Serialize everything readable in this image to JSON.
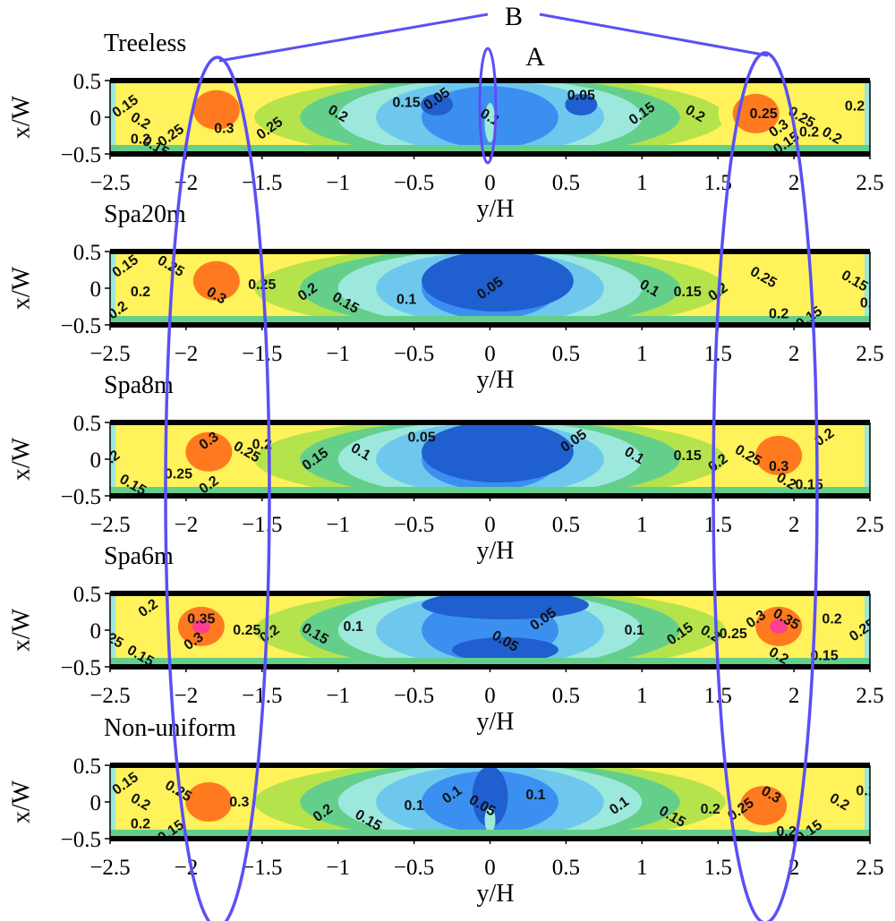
{
  "chart_data": {
    "type": "heatmap",
    "xlabel": "y/H",
    "ylabel": "x/W",
    "xlim": [
      -2.5,
      2.5
    ],
    "ylim": [
      -0.5,
      0.5
    ],
    "x_ticks": [
      "−2.5",
      "−2",
      "−1.5",
      "−1",
      "−0.5",
      "0",
      "0.5",
      "1",
      "1.5",
      "2",
      "2.5"
    ],
    "y_ticks": [
      "0.5",
      "0",
      "−0.5"
    ],
    "color_levels": [
      0.05,
      0.1,
      0.15,
      0.2,
      0.25,
      0.3,
      0.35
    ],
    "level_colors": [
      "#1f5fd0",
      "#3b8ff0",
      "#6ec8ee",
      "#9de8dc",
      "#63cf8a",
      "#b4e34c",
      "#fff25a",
      "#ff7a1e",
      "#ff3f8f"
    ],
    "annotations": [
      {
        "label": "A",
        "x": 0,
        "y": 0
      },
      {
        "label": "B",
        "targets": [
          -1.8,
          1.8
        ]
      }
    ],
    "panels": [
      {
        "title": "Treeless",
        "peak_value": 0.3,
        "hotspots": [
          {
            "y": -1.8,
            "x": 0.1,
            "value": 0.3
          },
          {
            "y": 1.75,
            "x": 0.05,
            "value": 0.3
          }
        ],
        "contour_labels": [
          {
            "text": "0.15",
            "y": -2.4,
            "x": 0.15
          },
          {
            "text": "0.2",
            "y": -2.3,
            "x": -0.05
          },
          {
            "text": "0.2",
            "y": -2.3,
            "x": -0.3
          },
          {
            "text": "0.25",
            "y": -2.1,
            "x": -0.25
          },
          {
            "text": "0.15",
            "y": -2.2,
            "x": -0.4
          },
          {
            "text": "0.3",
            "y": -1.75,
            "x": -0.15
          },
          {
            "text": "0.25",
            "y": -1.45,
            "x": -0.15
          },
          {
            "text": "0.2",
            "y": -1.0,
            "x": 0.05
          },
          {
            "text": "0.15",
            "y": -0.55,
            "x": 0.2
          },
          {
            "text": "0.05",
            "y": -0.35,
            "x": 0.25
          },
          {
            "text": "0.1",
            "y": 0.0,
            "x": 0.0
          },
          {
            "text": "0.05",
            "y": 0.6,
            "x": 0.3
          },
          {
            "text": "0.15",
            "y": 1.0,
            "x": 0.05
          },
          {
            "text": "0.2",
            "y": 1.35,
            "x": 0.05
          },
          {
            "text": "0.25",
            "y": 1.8,
            "x": 0.05
          },
          {
            "text": "0.3",
            "y": 1.9,
            "x": -0.15
          },
          {
            "text": "0.25",
            "y": 2.05,
            "x": 0.0
          },
          {
            "text": "0.2",
            "y": 2.1,
            "x": -0.2
          },
          {
            "text": "0.15",
            "y": 1.95,
            "x": -0.35
          },
          {
            "text": "0.2",
            "y": 2.25,
            "x": -0.25
          },
          {
            "text": "0.2",
            "y": 2.4,
            "x": 0.15
          }
        ]
      },
      {
        "title": "Spa20m",
        "peak_value": 0.3,
        "hotspots": [
          {
            "y": -1.8,
            "x": 0.1,
            "value": 0.3
          }
        ],
        "contour_labels": [
          {
            "text": "0.15",
            "y": -2.4,
            "x": 0.3
          },
          {
            "text": "0.25",
            "y": -2.1,
            "x": 0.3
          },
          {
            "text": "0.2",
            "y": -2.3,
            "x": -0.05
          },
          {
            "text": "0.2",
            "y": -2.45,
            "x": -0.3
          },
          {
            "text": "0.3",
            "y": -1.8,
            "x": -0.1
          },
          {
            "text": "0.25",
            "y": -1.5,
            "x": 0.05
          },
          {
            "text": "0.2",
            "y": -1.2,
            "x": -0.05
          },
          {
            "text": "0.15",
            "y": -0.95,
            "x": -0.2
          },
          {
            "text": "0.1",
            "y": -0.55,
            "x": -0.15
          },
          {
            "text": "0.05",
            "y": 0.0,
            "x": 0.0
          },
          {
            "text": "0.1",
            "y": 1.05,
            "x": 0.0
          },
          {
            "text": "0.15",
            "y": 1.3,
            "x": -0.05
          },
          {
            "text": "0.2",
            "y": 1.5,
            "x": -0.05
          },
          {
            "text": "0.25",
            "y": 1.8,
            "x": 0.15
          },
          {
            "text": "0.2",
            "y": 1.9,
            "x": -0.35
          },
          {
            "text": "0.15",
            "y": 2.1,
            "x": -0.4
          },
          {
            "text": "0.15",
            "y": 2.4,
            "x": 0.1
          },
          {
            "text": "0.2",
            "y": 2.5,
            "x": -0.2
          }
        ]
      },
      {
        "title": "Spa8m",
        "peak_value": 0.3,
        "hotspots": [
          {
            "y": -1.85,
            "x": 0.1,
            "value": 0.3
          },
          {
            "y": 1.9,
            "x": 0.05,
            "value": 0.3
          }
        ],
        "contour_labels": [
          {
            "text": "0.3",
            "y": -1.85,
            "x": 0.25
          },
          {
            "text": "0.25",
            "y": -1.6,
            "x": 0.1
          },
          {
            "text": "0.2",
            "y": -1.5,
            "x": 0.2
          },
          {
            "text": "0.15",
            "y": -1.15,
            "x": 0.0
          },
          {
            "text": "0.1",
            "y": -0.85,
            "x": 0.1
          },
          {
            "text": "0.05",
            "y": -0.45,
            "x": 0.3
          },
          {
            "text": "0.05",
            "y": 0.55,
            "x": 0.25
          },
          {
            "text": "0.1",
            "y": 0.95,
            "x": 0.05
          },
          {
            "text": "0.15",
            "y": 1.3,
            "x": 0.05
          },
          {
            "text": "0.2",
            "y": 1.5,
            "x": -0.05
          },
          {
            "text": "0.25",
            "y": 1.7,
            "x": 0.05
          },
          {
            "text": "0.3",
            "y": 1.9,
            "x": -0.1
          },
          {
            "text": "0.2",
            "y": 2.2,
            "x": 0.3
          },
          {
            "text": "0.2",
            "y": 1.95,
            "x": -0.3
          },
          {
            "text": "0.15",
            "y": 2.1,
            "x": -0.35
          },
          {
            "text": "0.2",
            "y": -2.5,
            "x": 0.0
          },
          {
            "text": "0.15",
            "y": -2.35,
            "x": -0.35
          },
          {
            "text": "0.25",
            "y": -2.05,
            "x": -0.2
          },
          {
            "text": "0.2",
            "y": -1.85,
            "x": -0.35
          }
        ]
      },
      {
        "title": "Spa6m",
        "peak_value": 0.35,
        "hotspots": [
          {
            "y": -1.9,
            "x": 0.05,
            "value": 0.35
          },
          {
            "y": 1.9,
            "x": 0.05,
            "value": 0.35
          }
        ],
        "contour_labels": [
          {
            "text": "0.2",
            "y": -2.25,
            "x": 0.3
          },
          {
            "text": "0.25",
            "y": -2.5,
            "x": -0.1
          },
          {
            "text": "0.35",
            "y": -1.9,
            "x": 0.15
          },
          {
            "text": "0.3",
            "y": -1.95,
            "x": -0.15
          },
          {
            "text": "0.15",
            "y": -2.3,
            "x": -0.35
          },
          {
            "text": "0.25",
            "y": -1.6,
            "x": 0.0
          },
          {
            "text": "0.2",
            "y": -1.45,
            "x": -0.05
          },
          {
            "text": "0.15",
            "y": -1.15,
            "x": -0.05
          },
          {
            "text": "0.1",
            "y": -0.9,
            "x": 0.05
          },
          {
            "text": "0.05",
            "y": 0.35,
            "x": 0.15
          },
          {
            "text": "0.05",
            "y": 0.1,
            "x": -0.15
          },
          {
            "text": "0.1",
            "y": 0.95,
            "x": 0.0
          },
          {
            "text": "0.15",
            "y": 1.25,
            "x": -0.05
          },
          {
            "text": "0.2",
            "y": 1.45,
            "x": -0.05
          },
          {
            "text": "0.25",
            "y": 1.6,
            "x": -0.05
          },
          {
            "text": "0.3",
            "y": 1.75,
            "x": 0.15
          },
          {
            "text": "0.35",
            "y": 1.95,
            "x": 0.15
          },
          {
            "text": "0.2",
            "y": 2.25,
            "x": 0.15
          },
          {
            "text": "0.25",
            "y": 2.45,
            "x": 0.0
          },
          {
            "text": "0.2",
            "y": 1.9,
            "x": -0.35
          },
          {
            "text": "0.15",
            "y": 2.2,
            "x": -0.35
          }
        ]
      },
      {
        "title": "Non-uniform",
        "peak_value": 0.3,
        "hotspots": [
          {
            "y": -1.85,
            "x": 0.0,
            "value": 0.3
          },
          {
            "y": 1.8,
            "x": -0.05,
            "value": 0.3
          }
        ],
        "contour_labels": [
          {
            "text": "0.15",
            "y": -2.4,
            "x": 0.25
          },
          {
            "text": "0.2",
            "y": -2.3,
            "x": 0.0
          },
          {
            "text": "0.2",
            "y": -2.3,
            "x": -0.3
          },
          {
            "text": "0.15",
            "y": -2.1,
            "x": -0.4
          },
          {
            "text": "0.25",
            "y": -2.05,
            "x": 0.15
          },
          {
            "text": "0.3",
            "y": -1.65,
            "x": 0.0
          },
          {
            "text": "0.2",
            "y": -1.1,
            "x": -0.15
          },
          {
            "text": "0.15",
            "y": -0.8,
            "x": -0.25
          },
          {
            "text": "0.1",
            "y": -0.5,
            "x": -0.05
          },
          {
            "text": "0.1",
            "y": -0.25,
            "x": 0.1
          },
          {
            "text": "0.05",
            "y": -0.05,
            "x": -0.05
          },
          {
            "text": "0.1",
            "y": 0.3,
            "x": 0.1
          },
          {
            "text": "0.1",
            "y": 0.85,
            "x": -0.05
          },
          {
            "text": "0.15",
            "y": 1.2,
            "x": -0.2
          },
          {
            "text": "0.2",
            "y": 1.45,
            "x": -0.1
          },
          {
            "text": "0.25",
            "y": 1.65,
            "x": -0.1
          },
          {
            "text": "0.3",
            "y": 1.85,
            "x": 0.1
          },
          {
            "text": "0.2",
            "y": 1.95,
            "x": -0.4
          },
          {
            "text": "0.15",
            "y": 2.1,
            "x": -0.4
          },
          {
            "text": "0.2",
            "y": 2.3,
            "x": 0.0
          },
          {
            "text": "0.15",
            "y": 2.5,
            "x": 0.15
          }
        ]
      }
    ]
  }
}
